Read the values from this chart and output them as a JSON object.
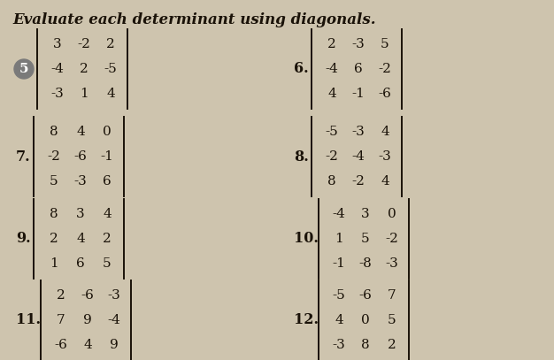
{
  "title": "Evaluate each determinant using diagonals.",
  "background_color": "#cec4ae",
  "problems": [
    {
      "number": "5",
      "circled": true,
      "matrix": [
        [
          3,
          -2,
          2
        ],
        [
          -4,
          2,
          -5
        ],
        [
          -3,
          1,
          4
        ]
      ],
      "col": 0,
      "row": 0
    },
    {
      "number": "6.",
      "circled": false,
      "matrix": [
        [
          2,
          -3,
          5
        ],
        [
          -4,
          6,
          -2
        ],
        [
          4,
          -1,
          -6
        ]
      ],
      "col": 1,
      "row": 0
    },
    {
      "number": "7.",
      "circled": false,
      "matrix": [
        [
          8,
          4,
          0
        ],
        [
          -2,
          -6,
          -1
        ],
        [
          5,
          -3,
          6
        ]
      ],
      "col": 0,
      "row": 1
    },
    {
      "number": "8.",
      "circled": false,
      "matrix": [
        [
          -5,
          -3,
          4
        ],
        [
          -2,
          -4,
          -3
        ],
        [
          8,
          -2,
          4
        ]
      ],
      "col": 1,
      "row": 1
    },
    {
      "number": "9.",
      "circled": false,
      "matrix": [
        [
          8,
          3,
          4
        ],
        [
          2,
          4,
          2
        ],
        [
          1,
          6,
          5
        ]
      ],
      "col": 0,
      "row": 2
    },
    {
      "number": "10.",
      "circled": false,
      "matrix": [
        [
          -4,
          3,
          0
        ],
        [
          1,
          5,
          -2
        ],
        [
          -1,
          -8,
          -3
        ]
      ],
      "col": 1,
      "row": 2
    },
    {
      "number": "11.",
      "circled": false,
      "matrix": [
        [
          2,
          -6,
          -3
        ],
        [
          7,
          9,
          -4
        ],
        [
          -6,
          4,
          9
        ]
      ],
      "col": 0,
      "row": 3
    },
    {
      "number": "12.",
      "circled": false,
      "matrix": [
        [
          -5,
          -6,
          7
        ],
        [
          4,
          0,
          5
        ],
        [
          -3,
          8,
          2
        ]
      ],
      "col": 1,
      "row": 3
    }
  ],
  "text_color": "#1a1208",
  "font_size": 11,
  "title_font_size": 12
}
